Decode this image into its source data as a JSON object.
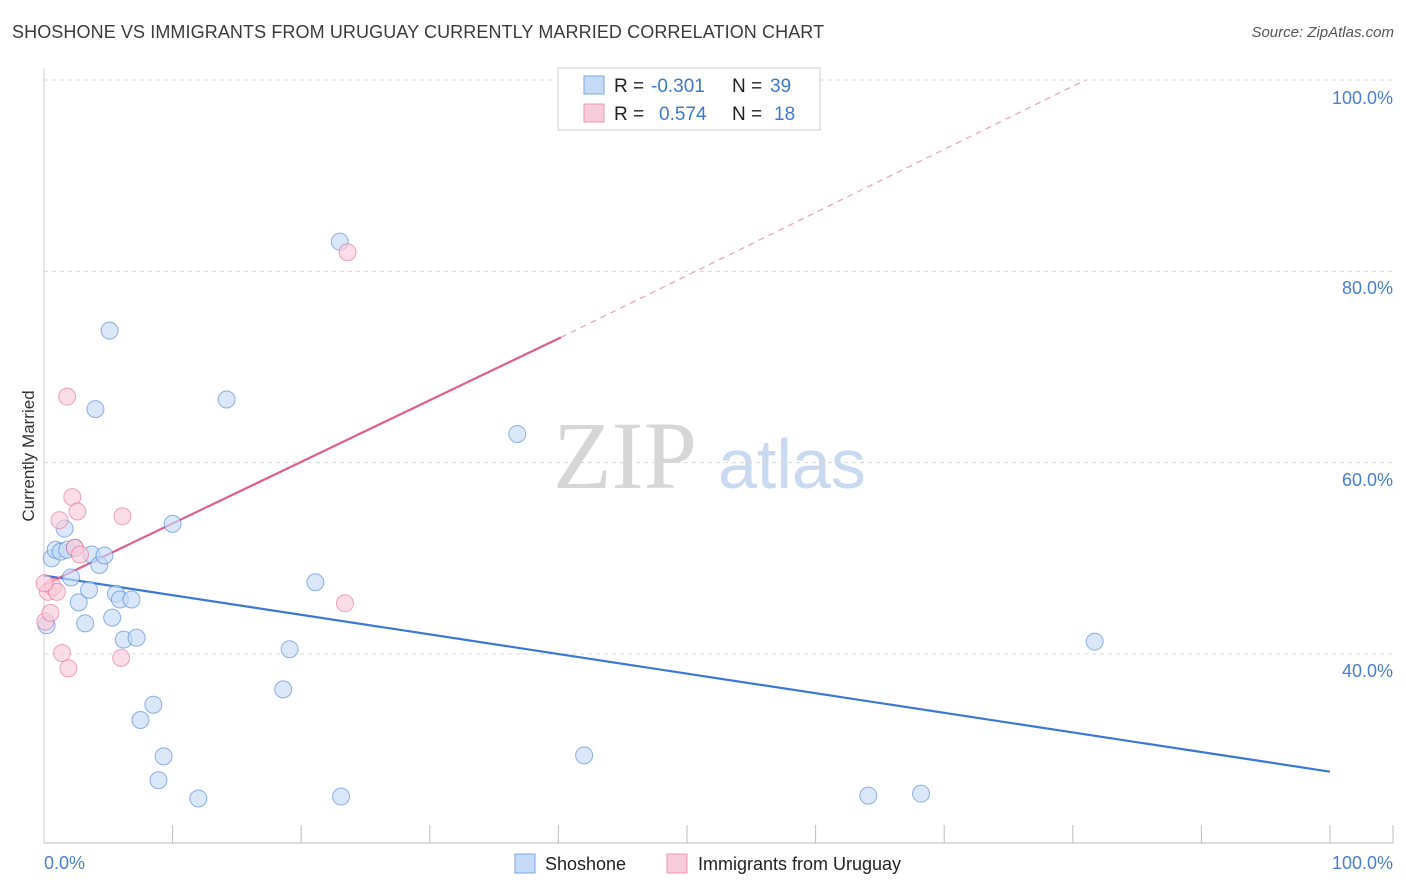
{
  "title": "SHOSHONE VS IMMIGRANTS FROM URUGUAY CURRENTLY MARRIED CORRELATION CHART",
  "source": "Source: ZipAtlas.com",
  "watermark": {
    "zip": "ZIP",
    "atlas": "atlas"
  },
  "colors": {
    "blue": "#3a78d4",
    "blue_fill": "#c5daf5",
    "pink": "#e0608f",
    "pink_fill": "#f8cbda",
    "grid": "#d8d8d8",
    "axis_label": "#4a7fd0"
  },
  "legend": {
    "rows": [
      {
        "r_label": "R =",
        "r_value": "-0.301",
        "n_label": "N =",
        "n_value": "39",
        "series": "blue"
      },
      {
        "r_label": "R =",
        "r_value": "0.574",
        "n_label": "N =",
        "n_value": "18",
        "series": "pink"
      }
    ]
  },
  "bottom_legend": [
    "Shoshone",
    "Immigrants from Uruguay"
  ],
  "chart_data": {
    "type": "scatter",
    "title": "SHOSHONE VS IMMIGRANTS FROM URUGUAY CURRENTLY MARRIED CORRELATION CHART",
    "xlabel": "",
    "ylabel": "Currently Married",
    "xlim": [
      0,
      100
    ],
    "ylim": [
      23,
      101
    ],
    "x_tick_labels": [
      "0.0%",
      "100.0%"
    ],
    "y_ticks": [
      40,
      60,
      80,
      100
    ],
    "y_tick_labels": [
      "40.0%",
      "60.0%",
      "80.0%",
      "100.0%"
    ],
    "grid": true,
    "series": [
      {
        "name": "Shoshone",
        "color": "#3a78d4",
        "points": [
          [
            0.2,
            43.0
          ],
          [
            0.6,
            50.0
          ],
          [
            0.9,
            50.9
          ],
          [
            1.3,
            50.7
          ],
          [
            1.6,
            53.1
          ],
          [
            1.8,
            50.9
          ],
          [
            2.1,
            48.0
          ],
          [
            2.4,
            51.1
          ],
          [
            2.7,
            45.4
          ],
          [
            3.2,
            43.2
          ],
          [
            3.5,
            46.7
          ],
          [
            3.7,
            50.4
          ],
          [
            4.0,
            65.6
          ],
          [
            4.3,
            49.3
          ],
          [
            4.7,
            50.3
          ],
          [
            5.1,
            73.8
          ],
          [
            5.3,
            43.8
          ],
          [
            5.6,
            46.3
          ],
          [
            5.9,
            45.7
          ],
          [
            6.2,
            41.5
          ],
          [
            6.8,
            45.7
          ],
          [
            7.2,
            41.7
          ],
          [
            7.5,
            33.1
          ],
          [
            8.5,
            34.7
          ],
          [
            8.9,
            26.8
          ],
          [
            9.3,
            29.3
          ],
          [
            10.0,
            53.6
          ],
          [
            12.0,
            24.9
          ],
          [
            14.2,
            66.6
          ],
          [
            18.6,
            36.3
          ],
          [
            19.1,
            40.5
          ],
          [
            21.1,
            47.5
          ],
          [
            23.0,
            83.1
          ],
          [
            23.1,
            25.1
          ],
          [
            36.8,
            63.0
          ],
          [
            42.0,
            29.4
          ],
          [
            64.1,
            25.2
          ],
          [
            68.2,
            25.4
          ],
          [
            81.7,
            41.3
          ]
        ],
        "trend": {
          "x": [
            0,
            100
          ],
          "y": [
            48.2,
            27.7
          ]
        }
      },
      {
        "name": "Immigrants from Uruguay",
        "color": "#e0608f",
        "points": [
          [
            0.1,
            43.4
          ],
          [
            0.3,
            46.5
          ],
          [
            0.5,
            44.3
          ],
          [
            0.7,
            47.0
          ],
          [
            1.0,
            46.5
          ],
          [
            1.2,
            54.0
          ],
          [
            1.4,
            40.1
          ],
          [
            1.9,
            38.5
          ],
          [
            1.8,
            66.9
          ],
          [
            2.2,
            56.4
          ],
          [
            2.4,
            51.1
          ],
          [
            2.6,
            54.9
          ],
          [
            2.8,
            50.4
          ],
          [
            6.0,
            39.6
          ],
          [
            6.1,
            54.4
          ],
          [
            23.6,
            82.0
          ],
          [
            23.4,
            45.3
          ],
          [
            0.05,
            47.4
          ]
        ],
        "trend": {
          "x": [
            0,
            40.2
          ],
          "y": [
            47.2,
            73.1
          ]
        },
        "trend_extrapolated": {
          "x": [
            40.2,
            81.0
          ],
          "y": [
            73.1,
            100.0
          ]
        }
      }
    ]
  }
}
